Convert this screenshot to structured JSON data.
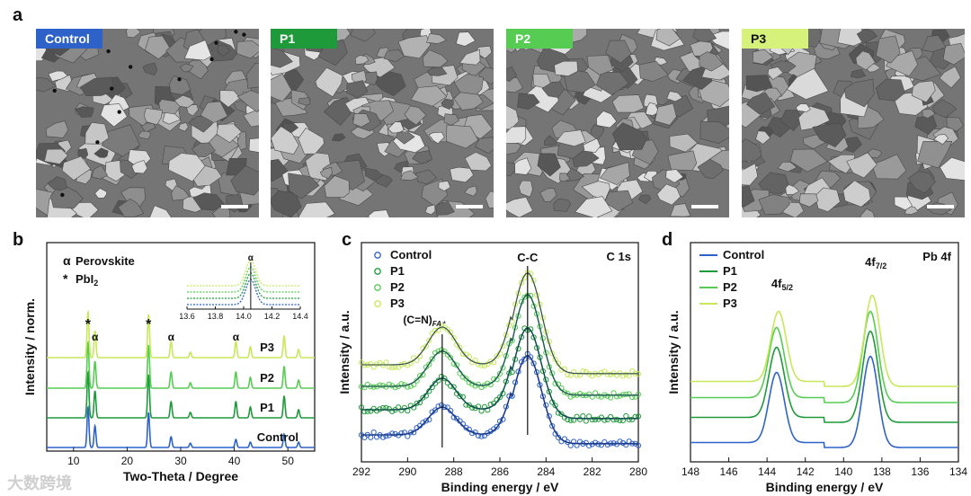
{
  "panel_a": {
    "letter": "a",
    "images": [
      {
        "label": "Control",
        "label_bg": "#2f62c8",
        "label_color": "#ffffff"
      },
      {
        "label": "P1",
        "label_bg": "#1f9a3a",
        "label_color": "#ffffff"
      },
      {
        "label": "P2",
        "label_bg": "#56cc52",
        "label_color": "#ffffff"
      },
      {
        "label": "P3",
        "label_bg": "#d6f27a",
        "label_color": "#111111"
      }
    ]
  },
  "chart_data": [
    {
      "panel": "b",
      "type": "line",
      "xlabel": "Two-Theta / Degree",
      "ylabel": "Intensity / norm.",
      "xlim": [
        5,
        55
      ],
      "xticks": [
        10,
        20,
        30,
        40,
        50
      ],
      "legend_markers": [
        {
          "symbol": "α",
          "text": "Perovskite"
        },
        {
          "symbol": "*",
          "text": "PbI",
          "subscript": "2"
        }
      ],
      "peak_annotations": [
        {
          "x": 12.7,
          "symbol": "*"
        },
        {
          "x": 14.0,
          "symbol": "α"
        },
        {
          "x": 24.0,
          "symbol": "*"
        },
        {
          "x": 28.2,
          "symbol": "α"
        },
        {
          "x": 40.3,
          "symbol": "α"
        }
      ],
      "series": [
        {
          "name": "Control",
          "color": "#2f62c8",
          "peaks": [
            [
              12.7,
              0.75
            ],
            [
              14.0,
              0.4
            ],
            [
              24.0,
              0.65
            ],
            [
              28.2,
              0.2
            ],
            [
              31.8,
              0.08
            ],
            [
              40.3,
              0.15
            ],
            [
              43.0,
              0.1
            ],
            [
              49.3,
              0.25
            ],
            [
              52.0,
              0.1
            ]
          ]
        },
        {
          "name": "P1",
          "color": "#1f9a3a",
          "peaks": [
            [
              12.7,
              0.85
            ],
            [
              14.0,
              0.5
            ],
            [
              24.0,
              0.8
            ],
            [
              28.2,
              0.3
            ],
            [
              31.8,
              0.1
            ],
            [
              40.3,
              0.3
            ],
            [
              43.0,
              0.2
            ],
            [
              49.3,
              0.4
            ],
            [
              52.0,
              0.15
            ]
          ]
        },
        {
          "name": "P2",
          "color": "#56cc52",
          "peaks": [
            [
              12.7,
              0.85
            ],
            [
              14.0,
              0.5
            ],
            [
              24.0,
              0.8
            ],
            [
              28.2,
              0.3
            ],
            [
              31.8,
              0.1
            ],
            [
              40.3,
              0.3
            ],
            [
              43.0,
              0.2
            ],
            [
              49.3,
              0.4
            ],
            [
              52.0,
              0.15
            ]
          ]
        },
        {
          "name": "P3",
          "color": "#c6e85a",
          "peaks": [
            [
              12.7,
              0.85
            ],
            [
              14.0,
              0.5
            ],
            [
              24.0,
              0.8
            ],
            [
              28.2,
              0.3
            ],
            [
              31.8,
              0.1
            ],
            [
              40.3,
              0.3
            ],
            [
              43.0,
              0.2
            ],
            [
              49.3,
              0.4
            ],
            [
              52.0,
              0.15
            ]
          ]
        }
      ],
      "inset": {
        "xlim": [
          13.6,
          14.4
        ],
        "xticks": [
          "13.6",
          "13.8",
          "14.0",
          "14.2",
          "14.4"
        ],
        "peak_x": 14.05,
        "peak_symbol": "α"
      }
    },
    {
      "panel": "c",
      "type": "line",
      "title": "C 1s",
      "xlabel": "Binding energy / eV",
      "ylabel": "Intensity / a.u.",
      "xlim": [
        292,
        280
      ],
      "xticks": [
        292,
        290,
        288,
        286,
        284,
        282,
        280
      ],
      "annotations": [
        {
          "text": "C-C",
          "x": 284.8
        },
        {
          "text": "(C=N)",
          "subscript": "FA⁺",
          "x": 288.5
        }
      ],
      "series": [
        {
          "name": "Control",
          "color": "#2f62c8",
          "peaks": [
            [
              288.5,
              0.22
            ],
            [
              284.8,
              0.7
            ]
          ]
        },
        {
          "name": "P1",
          "color": "#1f9a3a",
          "peaks": [
            [
              288.5,
              0.25
            ],
            [
              284.8,
              0.72
            ]
          ]
        },
        {
          "name": "P2",
          "color": "#56cc52",
          "peaks": [
            [
              288.5,
              0.28
            ],
            [
              284.8,
              0.8
            ]
          ]
        },
        {
          "name": "P3",
          "color": "#c6e85a",
          "peaks": [
            [
              288.5,
              0.3
            ],
            [
              284.8,
              0.8
            ]
          ]
        }
      ]
    },
    {
      "panel": "d",
      "type": "line",
      "title": "Pb 4f",
      "xlabel": "Binding energy / eV",
      "ylabel": "Intensity / a.u.",
      "xlim": [
        148,
        134
      ],
      "xticks": [
        148,
        146,
        144,
        142,
        140,
        138,
        136,
        134
      ],
      "annotations": [
        {
          "text": "4f",
          "subscript": "5/2",
          "x": 143.4
        },
        {
          "text": "4f",
          "subscript": "7/2",
          "x": 138.5
        }
      ],
      "series": [
        {
          "name": "Control",
          "color": "#2f62c8",
          "peaks": [
            [
              143.5,
              1.0
            ],
            [
              138.6,
              1.3
            ]
          ]
        },
        {
          "name": "P1",
          "color": "#1f9a3a",
          "peaks": [
            [
              143.5,
              1.0
            ],
            [
              138.6,
              1.3
            ]
          ]
        },
        {
          "name": "P2",
          "color": "#56cc52",
          "peaks": [
            [
              143.5,
              1.0
            ],
            [
              138.6,
              1.3
            ]
          ]
        },
        {
          "name": "P3",
          "color": "#c6e85a",
          "peaks": [
            [
              143.4,
              1.0
            ],
            [
              138.5,
              1.3
            ]
          ]
        }
      ]
    }
  ],
  "watermark": "大数跨境"
}
